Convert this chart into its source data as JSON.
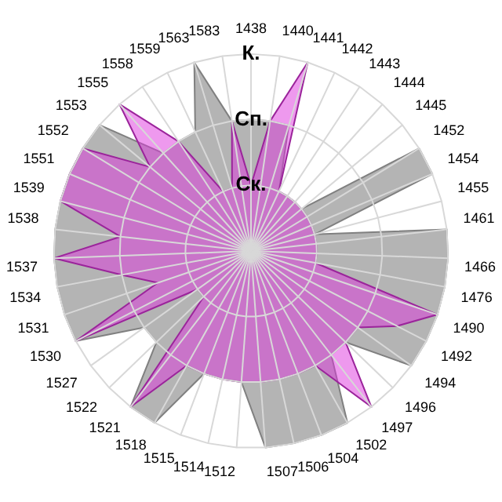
{
  "chart_data": {
    "type": "radar",
    "categories": [
      "1438",
      "1440",
      "1441",
      "1442",
      "1443",
      "1444",
      "1445",
      "1452",
      "1454",
      "1455",
      "1461",
      "1466",
      "1476",
      "1490",
      "1492",
      "1494",
      "1496",
      "1497",
      "1502",
      "1504",
      "1506",
      "1507",
      "1512",
      "1514",
      "1515",
      "1518",
      "1521",
      "1522",
      "1527",
      "1530",
      "1531",
      "1534",
      "1537",
      "1538",
      "1539",
      "1551",
      "1552",
      "1553",
      "1555",
      "1558",
      "1559",
      "1563",
      "1583"
    ],
    "series": [
      {
        "color": "#b4b4b4",
        "values": [
          2,
          2,
          2,
          1,
          1,
          1,
          1,
          3,
          3,
          1,
          3,
          3,
          3,
          3,
          3,
          3,
          2,
          2,
          3,
          3,
          3,
          3,
          2,
          2,
          2,
          3,
          3,
          2,
          2,
          3,
          3,
          3,
          3,
          3,
          3,
          3,
          3,
          3,
          2,
          2,
          2,
          3,
          2
        ]
      },
      {
        "color": "#dd33dd",
        "values": [
          1,
          2,
          3,
          1,
          1,
          1,
          1,
          1,
          1,
          1,
          1,
          1,
          1,
          3,
          2.5,
          2,
          2,
          3,
          2,
          2,
          2,
          2,
          2,
          2,
          2,
          2,
          3,
          1,
          1,
          3,
          1.5,
          2,
          3,
          2,
          3,
          3,
          3,
          2,
          3,
          2,
          1,
          1,
          2
        ]
      }
    ],
    "ylim": [
      0,
      3
    ],
    "yticks": [
      {
        "value": 1,
        "label": "Ск."
      },
      {
        "value": 2,
        "label": "Сп."
      },
      {
        "value": 3,
        "label": "К."
      }
    ],
    "grid": true
  }
}
